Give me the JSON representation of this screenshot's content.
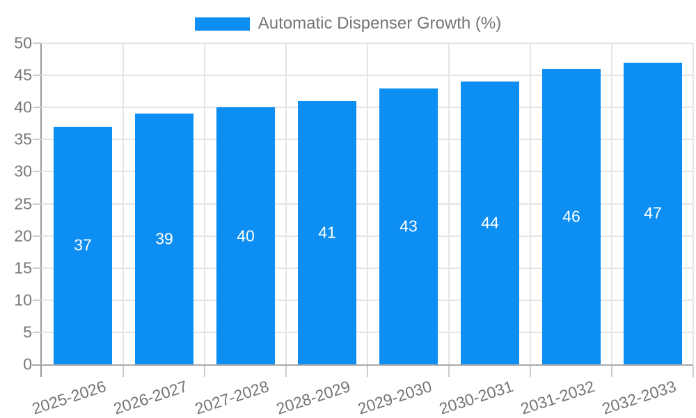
{
  "chart_data": {
    "type": "bar",
    "title": "Automatic Dispenser Growth (%)",
    "legend": {
      "position": "top",
      "label": "Automatic Dispenser Growth (%)"
    },
    "categories": [
      "2025-2026",
      "2026-2027",
      "2027-2028",
      "2028-2029",
      "2029-2030",
      "2030-2031",
      "2031-2032",
      "2032-2033"
    ],
    "values": [
      37,
      39,
      40,
      41,
      43,
      44,
      46,
      47
    ],
    "value_labels_position": "inside-center",
    "xlabel": "",
    "ylabel": "",
    "ylim": [
      0,
      50
    ],
    "yticks": [
      0,
      5,
      10,
      15,
      20,
      25,
      30,
      35,
      40,
      45,
      50
    ],
    "grid": true,
    "x_label_rotation_deg": -18
  },
  "colors": {
    "bar": "#0d8ef2",
    "grid": "#e5e5e5",
    "tick": "#cccccc",
    "y_axis": "#999999",
    "x_axis": "#aaaaaa",
    "tick_label": "#757575",
    "legend_label": "#757575",
    "value_label": "#ffffff",
    "background": "#ffffff"
  }
}
